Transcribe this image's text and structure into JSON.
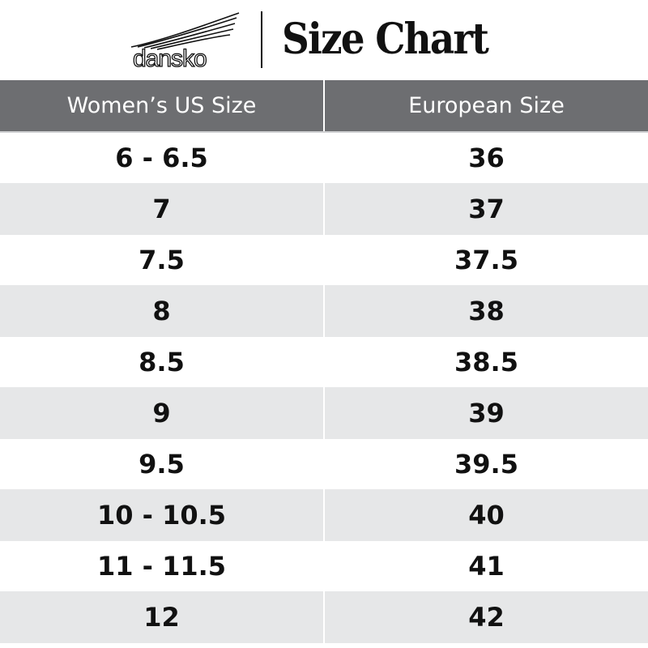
{
  "header": {
    "logo_text": "dansko",
    "title": "Size Chart"
  },
  "table": {
    "columns": [
      "Women’s US Size",
      "European Size"
    ],
    "rows": [
      [
        "6 - 6.5",
        "36"
      ],
      [
        "7",
        "37"
      ],
      [
        "7.5",
        "37.5"
      ],
      [
        "8",
        "38"
      ],
      [
        "8.5",
        "38.5"
      ],
      [
        "9",
        "39"
      ],
      [
        "9.5",
        "39.5"
      ],
      [
        "10 - 10.5",
        "40"
      ],
      [
        "11 - 11.5",
        "41"
      ],
      [
        "12",
        "42"
      ]
    ]
  },
  "colors": {
    "header_bg": "#6d6e71",
    "stripe": "#e6e7e8",
    "text": "#111111"
  }
}
